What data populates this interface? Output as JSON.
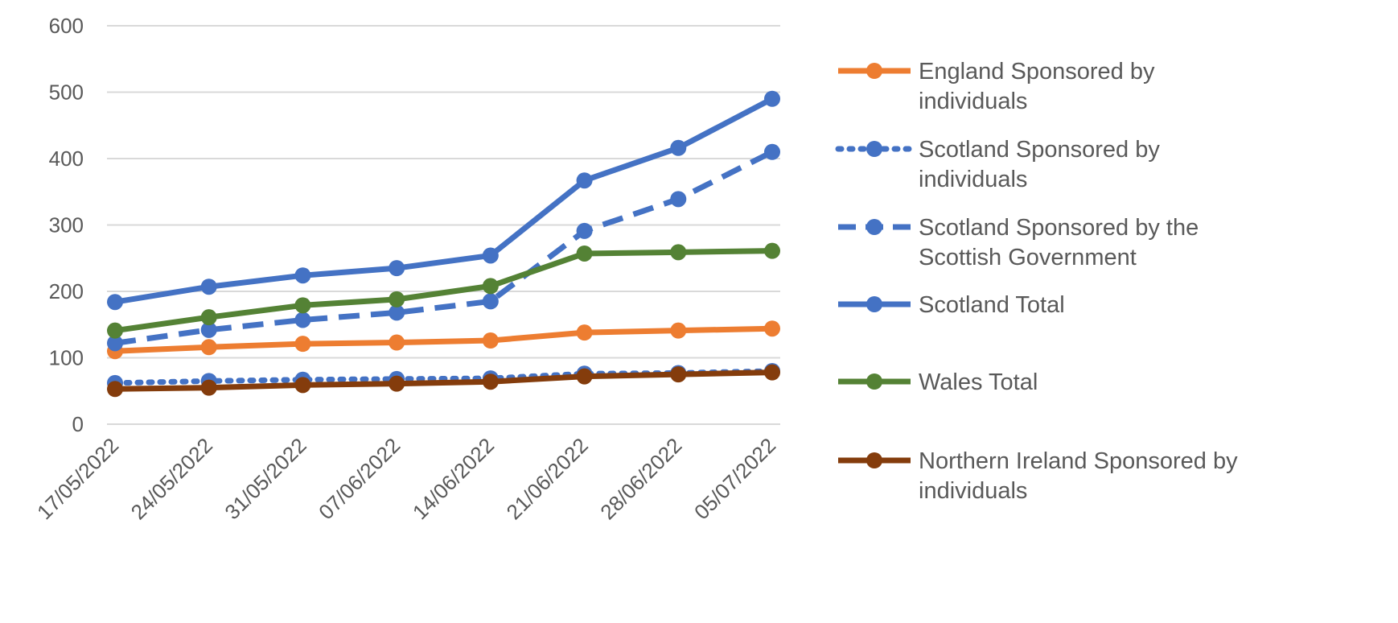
{
  "chart_data": {
    "type": "line",
    "title": "",
    "xlabel": "",
    "ylabel": "",
    "ylim": [
      0,
      600
    ],
    "yticks": [
      0,
      100,
      200,
      300,
      400,
      500,
      600
    ],
    "grid": true,
    "legend_position": "right",
    "categories": [
      "17/05/2022",
      "24/05/2022",
      "31/05/2022",
      "07/06/2022",
      "14/06/2022",
      "21/06/2022",
      "28/06/2022",
      "05/07/2022"
    ],
    "series": [
      {
        "name": "England Sponsored by individuals",
        "legend_lines": [
          "England Sponsored by",
          "individuals"
        ],
        "color": "#ED7D31",
        "dash": "solid",
        "values": [
          110,
          116,
          121,
          123,
          126,
          138,
          141,
          144
        ]
      },
      {
        "name": "Scotland Sponsored by individuals",
        "legend_lines": [
          "Scotland Sponsored by",
          "individuals"
        ],
        "color": "#4472C4",
        "dash": "dotted",
        "values": [
          62,
          65,
          67,
          68,
          69,
          76,
          77,
          80
        ]
      },
      {
        "name": "Scotland Sponsored by the Scottish Government",
        "legend_lines": [
          "Scotland Sponsored by the",
          "Scottish Government"
        ],
        "color": "#4472C4",
        "dash": "dashed",
        "values": [
          122,
          142,
          157,
          168,
          185,
          291,
          339,
          410
        ]
      },
      {
        "name": "Scotland Total",
        "legend_lines": [
          "Scotland Total"
        ],
        "color": "#4472C4",
        "dash": "solid",
        "values": [
          184,
          207,
          224,
          235,
          254,
          367,
          416,
          490
        ]
      },
      {
        "name": "Wales Total",
        "legend_lines": [
          "Wales Total"
        ],
        "color": "#548235",
        "dash": "solid",
        "values": [
          141,
          161,
          179,
          188,
          208,
          257,
          259,
          261
        ]
      },
      {
        "name": "Northern Ireland Sponsored by individuals",
        "legend_lines": [
          "Northern Ireland Sponsored by",
          "individuals"
        ],
        "color": "#843C0C",
        "dash": "solid",
        "values": [
          53,
          55,
          59,
          61,
          64,
          72,
          75,
          78
        ]
      }
    ]
  }
}
